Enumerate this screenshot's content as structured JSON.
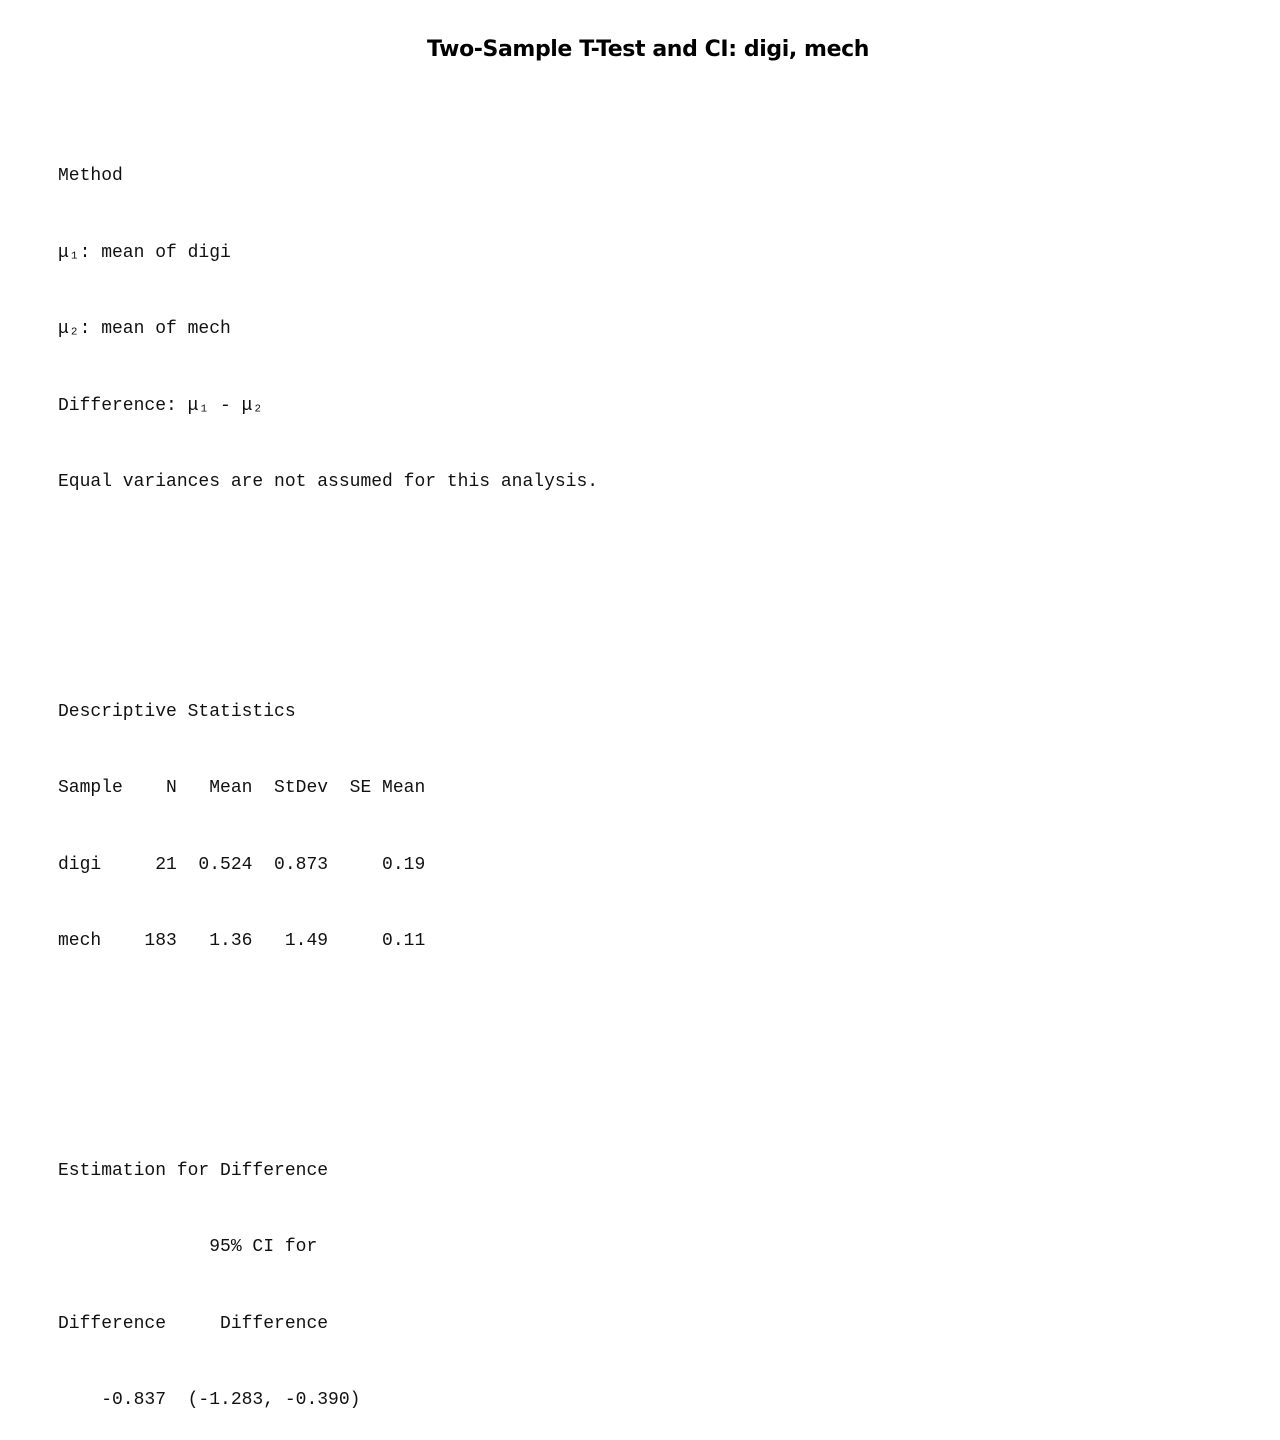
{
  "title": "Two-Sample T-Test and CI: digi, mech",
  "method": {
    "heading": "Method",
    "mu1": "μ₁: mean of digi",
    "mu2": "μ₂: mean of mech",
    "difference": "Difference: μ₁ - μ₂",
    "note": "Equal variances are not assumed for this analysis."
  },
  "descriptive": {
    "heading": "Descriptive Statistics",
    "header": "Sample    N   Mean  StDev  SE Mean",
    "rows": [
      "digi     21  0.524  0.873     0.19",
      "mech    183   1.36   1.49     0.11"
    ]
  },
  "estimation": {
    "heading": "Estimation for Difference",
    "header1": "              95% CI for",
    "header2": "Difference     Difference",
    "row": "    -0.837  (-1.283, -0.390)"
  }
}
